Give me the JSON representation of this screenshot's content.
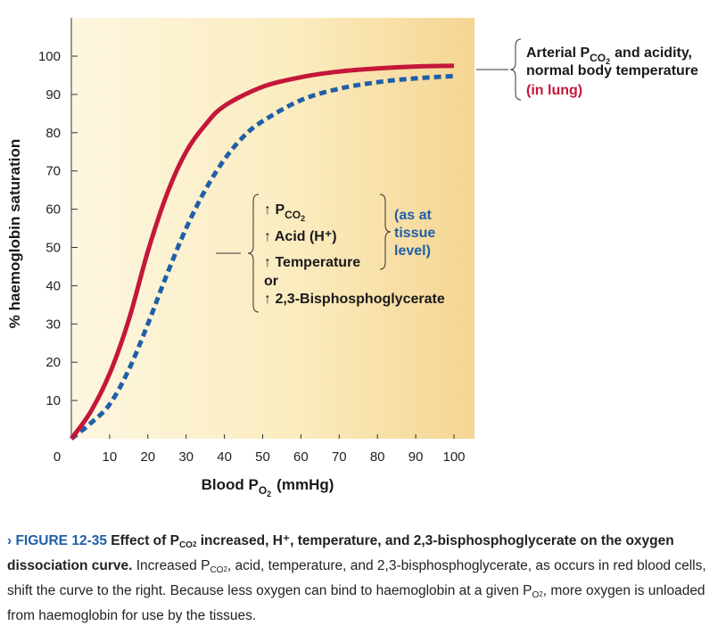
{
  "chart_data": {
    "type": "line",
    "xlabel": "Blood P",
    "xlabel_sub": "O",
    "xlabel_sub2": "2",
    "xlabel_unit": "(mmHg)",
    "ylabel": "% haemoglobin saturation",
    "xlim": [
      0,
      100
    ],
    "ylim": [
      0,
      100
    ],
    "x_ticks": [
      0,
      10,
      20,
      30,
      40,
      50,
      60,
      70,
      80,
      90,
      100
    ],
    "y_ticks": [
      10,
      20,
      30,
      40,
      50,
      60,
      70,
      80,
      90,
      100
    ],
    "series": [
      {
        "line_style": "solid",
        "color": "#c4173a",
        "x": [
          0,
          5,
          10,
          15,
          20,
          25,
          30,
          35,
          40,
          50,
          60,
          70,
          80,
          90,
          100
        ],
        "y": [
          0,
          7,
          17,
          31,
          49,
          64,
          75,
          82,
          87,
          92,
          94.5,
          96,
          96.8,
          97.3,
          97.5
        ]
      },
      {
        "line_style": "dashed",
        "color": "#1f5fa8",
        "x": [
          0,
          5,
          10,
          15,
          20,
          25,
          30,
          35,
          40,
          45,
          50,
          60,
          70,
          80,
          90,
          100
        ],
        "y": [
          0,
          4,
          9,
          18,
          30,
          43,
          55,
          65,
          73,
          79,
          83,
          88.5,
          91.5,
          93.2,
          94.2,
          94.8
        ]
      }
    ],
    "annotations": {
      "lung_line1_prefix": "Arterial P",
      "lung_line1_sub": "CO",
      "lung_line1_sub2": "2",
      "lung_line1_suffix": "and acidity,",
      "lung_line2": "normal body temperature",
      "lung_line3": "(in lung)",
      "tissue_items": [
        {
          "arrow": "↑",
          "text": "P",
          "sub": "CO",
          "sub2": "2"
        },
        {
          "arrow": "↑",
          "text": "Acid (H⁺)"
        },
        {
          "arrow": "↑",
          "text": "Temperature"
        },
        {
          "arrow": "",
          "text": "or"
        },
        {
          "arrow": "↑",
          "text": "2,3-Bisphosphoglycerate"
        }
      ],
      "tissue_note_line1": "(as at",
      "tissue_note_line2": "tissue",
      "tissue_note_line3": "level)"
    }
  },
  "caption": {
    "figure_number": "› FIGURE 12-35",
    "title_prefix": "Effect of P",
    "title_sub": "CO",
    "title_sub2": "2",
    "title_suffix": " increased, H⁺, temperature, and 2,3-bisphosphoglycerate on the oxygen dissociation curve.",
    "body_part1": " Increased P",
    "body_sub1": "CO",
    "body_sub1b": "2",
    "body_part2": ", acid, temperature, and 2,3-bisphosphoglycerate, as occurs in red blood cells, shift the curve to the right. Because less oxygen can bind to haemoglobin at a given P",
    "body_sub2": "O",
    "body_sub2b": "2",
    "body_part3": ", more oxygen is unloaded from haemoglobin for use by the tissues."
  },
  "colors": {
    "lung_curve": "#c4173a",
    "tissue_curve": "#1f5fa8",
    "plot_bg_light": "#fdf6dc",
    "plot_bg_warm": "#f6d99a"
  }
}
